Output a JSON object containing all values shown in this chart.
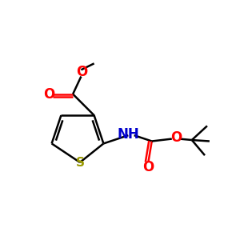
{
  "background_color": "#ffffff",
  "fig_width": 3.0,
  "fig_height": 3.0,
  "dpi": 100,
  "bond_color": "#000000",
  "s_color": "#999900",
  "o_color": "#ff0000",
  "n_color": "#0000cc",
  "bond_lw": 1.8,
  "xlim": [
    0,
    10
  ],
  "ylim": [
    0,
    10
  ]
}
